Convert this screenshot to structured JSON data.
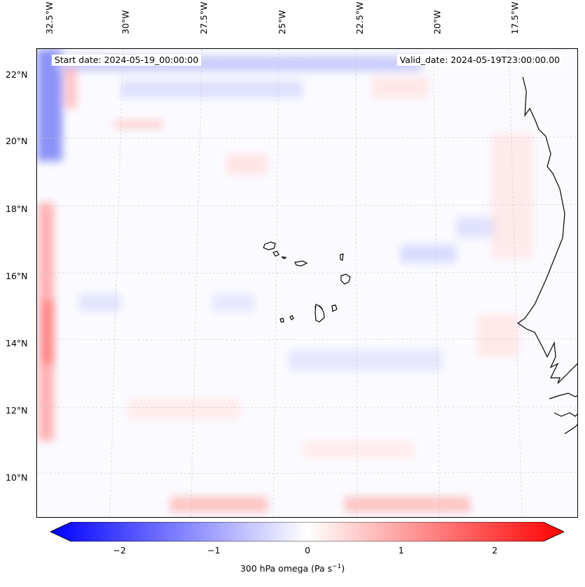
{
  "map": {
    "start_date": "Start date: 2024-05-19_00:00:00",
    "valid_date": "Valid_date: 2024-05-19T23:00:00.00",
    "lon_ticks": [
      "32.5°W",
      "30°W",
      "27.5°W",
      "25°W",
      "22.5°W",
      "20°W",
      "17.5°W"
    ],
    "lat_ticks": [
      "22°N",
      "20°N",
      "18°N",
      "16°N",
      "14°N",
      "12°N",
      "10°N"
    ],
    "gridlines": true,
    "region": "Cabo Verde / West Africa coast"
  },
  "colorbar": {
    "label_prefix": "300 hPa omega (Pa s",
    "label_exp": "−1",
    "label_suffix": ")",
    "ticks": [
      "−2",
      "−1",
      "0",
      "1",
      "2"
    ],
    "range": [
      -2.6,
      2.6
    ],
    "colormap": "bwr",
    "extend": "both",
    "colors": {
      "min": "#0000ff",
      "mid": "#ffffff",
      "max": "#ff0000"
    }
  }
}
